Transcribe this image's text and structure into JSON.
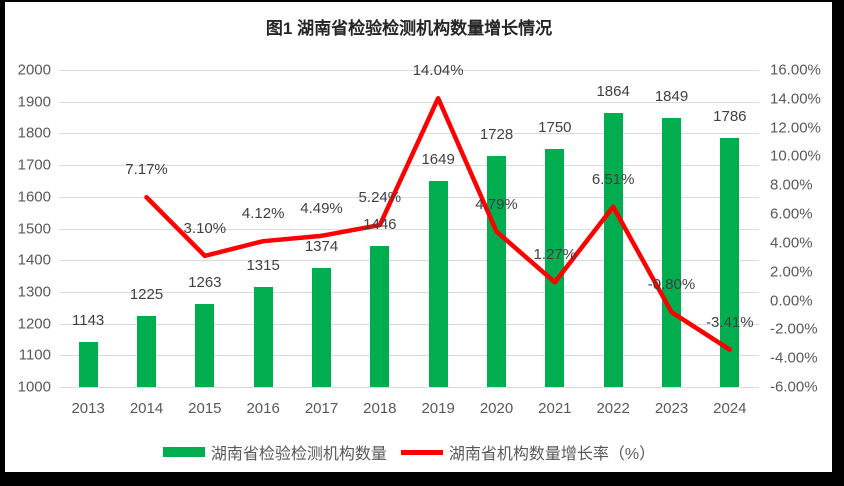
{
  "title": "图1 湖南省检验检测机构数量增长情况",
  "chart_data": {
    "type": "combo-bar-line",
    "categories": [
      "2013",
      "2014",
      "2015",
      "2016",
      "2017",
      "2018",
      "2019",
      "2020",
      "2021",
      "2022",
      "2023",
      "2024"
    ],
    "series": [
      {
        "name": "湖南省检验检测机构数量",
        "type": "bar",
        "axis": "left",
        "color": "#00AE50",
        "values": [
          1143,
          1225,
          1263,
          1315,
          1374,
          1446,
          1649,
          1728,
          1750,
          1864,
          1849,
          1786
        ],
        "labels": [
          "1143",
          "1225",
          "1263",
          "1315",
          "1374",
          "1446",
          "1649",
          "1728",
          "1750",
          "1864",
          "1849",
          "1786"
        ]
      },
      {
        "name": "湖南省机构数量增长率（%）",
        "type": "line",
        "axis": "right",
        "color": "#FF0000",
        "values": [
          null,
          7.17,
          3.1,
          4.12,
          4.49,
          5.24,
          14.04,
          4.79,
          1.27,
          6.51,
          -0.8,
          -3.41
        ],
        "labels": [
          null,
          "7.17%",
          "3.10%",
          "4.12%",
          "4.49%",
          "5.24%",
          "14.04%",
          "4.79%",
          "1.27%",
          "6.51%",
          "-0.80%",
          "-3.41%"
        ]
      }
    ],
    "left_axis": {
      "min": 1000,
      "max": 2000,
      "step": 100,
      "tick_labels": [
        "2000",
        "1900",
        "1800",
        "1700",
        "1600",
        "1500",
        "1400",
        "1300",
        "1200",
        "1100",
        "1000"
      ]
    },
    "right_axis": {
      "min": -6,
      "max": 16,
      "step": 2,
      "tick_labels": [
        "16.00%",
        "14.00%",
        "12.00%",
        "10.00%",
        "8.00%",
        "6.00%",
        "4.00%",
        "2.00%",
        "0.00%",
        "-2.00%",
        "-4.00%",
        "-6.00%"
      ]
    },
    "grid": true,
    "legend_position": "bottom",
    "colors": {
      "bar": "#00AE50",
      "line": "#FF0000",
      "gridline": "#DADADA",
      "axis_text": "#595959",
      "data_label_text": "#404040",
      "frame": "#000000",
      "panel": "#ffffff"
    }
  }
}
